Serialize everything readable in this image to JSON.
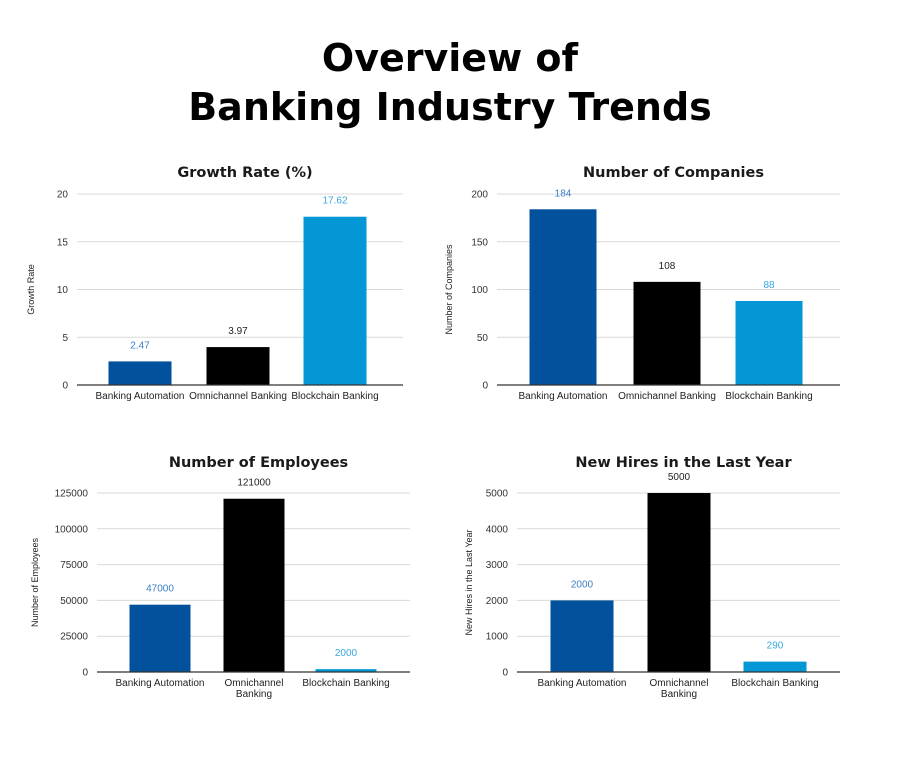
{
  "page": {
    "title_line1": "Overview of",
    "title_line2": "Banking Industry Trends"
  },
  "colors": {
    "Banking Automation": "#02519c",
    "Omnichannel Banking": "#000000",
    "Blockchain Banking": "#0397d6"
  },
  "label_colors": {
    "Banking Automation": "#3a7fc4",
    "Omnichannel Banking": "#222222",
    "Blockchain Banking": "#3aa6dd"
  },
  "chart_data": [
    {
      "type": "bar",
      "title": "Growth Rate (%)",
      "ylabel": "Growth Rate",
      "xlabel": "",
      "categories": [
        "Banking Automation",
        "Omnichannel Banking",
        "Blockchain Banking"
      ],
      "category_lines": [
        [
          "Banking Automation"
        ],
        [
          "Omnichannel Banking"
        ],
        [
          "Blockchain Banking"
        ]
      ],
      "values": [
        2.47,
        3.97,
        17.62
      ],
      "value_labels": [
        "2.47",
        "3.97",
        "17.62"
      ],
      "ylim": [
        0,
        20
      ],
      "yticks": [
        0,
        5,
        10,
        15,
        20
      ],
      "ytick_labels": [
        "0",
        "5",
        "10",
        "15",
        "20"
      ],
      "grid": true,
      "legend": "none"
    },
    {
      "type": "bar",
      "title": "Number of Companies",
      "ylabel": "Number of Companies",
      "xlabel": "",
      "categories": [
        "Banking Automation",
        "Omnichannel Banking",
        "Blockchain Banking"
      ],
      "category_lines": [
        [
          "Banking Automation"
        ],
        [
          "Omnichannel Banking"
        ],
        [
          "Blockchain Banking"
        ]
      ],
      "values": [
        184,
        108,
        88
      ],
      "value_labels": [
        "184",
        "108",
        "88"
      ],
      "ylim": [
        0,
        200
      ],
      "yticks": [
        0,
        50,
        100,
        150,
        200
      ],
      "ytick_labels": [
        "0",
        "50",
        "100",
        "150",
        "200"
      ],
      "grid": true,
      "legend": "none"
    },
    {
      "type": "bar",
      "title": "Number of Employees",
      "ylabel": "Number of Employees",
      "xlabel": "",
      "categories": [
        "Banking Automation",
        "Omnichannel Banking",
        "Blockchain Banking"
      ],
      "category_lines": [
        [
          "Banking Automation"
        ],
        [
          "Omnichannel",
          "Banking"
        ],
        [
          "Blockchain Banking"
        ]
      ],
      "values": [
        47000,
        121000,
        2000
      ],
      "value_labels": [
        "47000",
        "121000",
        "2000"
      ],
      "ylim": [
        0,
        125000
      ],
      "yticks": [
        0,
        25000,
        50000,
        75000,
        100000,
        125000
      ],
      "ytick_labels": [
        "0",
        "25000",
        "50000",
        "75000",
        "100000",
        "125000"
      ],
      "grid": true,
      "legend": "none"
    },
    {
      "type": "bar",
      "title": "New Hires in the Last Year",
      "ylabel": "New Hires in the Last Year",
      "xlabel": "",
      "categories": [
        "Banking Automation",
        "Omnichannel Banking",
        "Blockchain Banking"
      ],
      "category_lines": [
        [
          "Banking Automation"
        ],
        [
          "Omnichannel",
          "Banking"
        ],
        [
          "Blockchain Banking"
        ]
      ],
      "values": [
        2000,
        5000,
        290
      ],
      "value_labels": [
        "2000",
        "5000",
        "290"
      ],
      "ylim": [
        0,
        5000
      ],
      "yticks": [
        0,
        1000,
        2000,
        3000,
        4000,
        5000
      ],
      "ytick_labels": [
        "0",
        "1000",
        "2000",
        "3000",
        "4000",
        "5000"
      ],
      "grid": true,
      "legend": "none"
    }
  ]
}
